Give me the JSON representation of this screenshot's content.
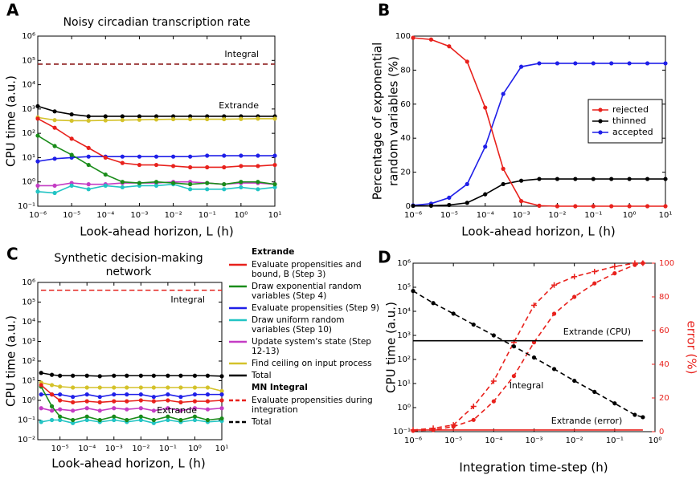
{
  "chart_data": [
    {
      "panel": "A",
      "type": "line",
      "title": "Noisy circadian transcription rate",
      "xlabel": "Look-ahead horizon, L (h)",
      "ylabel": "CPU time (a.u.)",
      "xscale": "log",
      "yscale": "log",
      "xlim": [
        1e-06,
        10
      ],
      "ylim": [
        0.1,
        1000000
      ],
      "xticks": [
        {
          "value": 1e-06,
          "label": "10⁻⁶"
        },
        {
          "value": 1e-05,
          "label": "10⁻⁵"
        },
        {
          "value": 0.0001,
          "label": "10⁻⁴"
        },
        {
          "value": 0.001,
          "label": "10⁻³"
        },
        {
          "value": 0.01,
          "label": "10⁻²"
        },
        {
          "value": 0.1,
          "label": "10⁻¹"
        },
        {
          "value": 1,
          "label": "10⁰"
        },
        {
          "value": 10,
          "label": "10¹"
        }
      ],
      "yticks": [
        {
          "value": 0.1,
          "label": "10⁻¹"
        },
        {
          "value": 1,
          "label": "10⁰"
        },
        {
          "value": 10,
          "label": "10¹"
        },
        {
          "value": 100,
          "label": "10²"
        },
        {
          "value": 1000,
          "label": "10³"
        },
        {
          "value": 10000,
          "label": "10⁴"
        },
        {
          "value": 100000,
          "label": "10⁵"
        },
        {
          "value": 1000000,
          "label": "10⁶"
        }
      ],
      "x": [
        1e-06,
        3.16e-06,
        1e-05,
        3.16e-05,
        0.0001,
        0.000316,
        0.001,
        0.00316,
        0.01,
        0.0316,
        0.1,
        0.316,
        1,
        3.16,
        10
      ],
      "series": [
        {
          "color": "#e8211c",
          "marker": "o",
          "values": [
            400,
            170,
            60,
            25,
            10,
            6,
            5,
            5,
            4.5,
            4,
            4,
            4,
            4.5,
            4.5,
            5
          ]
        },
        {
          "color": "#1a8c1a",
          "marker": "o",
          "values": [
            80,
            30,
            13,
            5,
            2,
            1,
            0.9,
            1,
            0.9,
            0.8,
            0.9,
            0.8,
            1,
            1,
            0.8
          ]
        },
        {
          "color": "#1f1fe8",
          "marker": "o",
          "values": [
            7,
            9,
            10,
            11,
            11,
            11,
            11,
            11,
            11,
            11,
            12,
            12,
            12,
            12,
            12
          ]
        },
        {
          "color": "#22c4c4",
          "marker": "o",
          "values": [
            0.4,
            0.35,
            0.7,
            0.5,
            0.7,
            0.6,
            0.7,
            0.7,
            0.8,
            0.5,
            0.5,
            0.5,
            0.6,
            0.5,
            0.6
          ]
        },
        {
          "color": "#c43cc4",
          "marker": "o",
          "values": [
            0.7,
            0.7,
            0.9,
            0.8,
            0.8,
            0.9,
            0.9,
            0.9,
            1,
            1,
            0.9,
            0.8,
            0.9,
            0.9,
            0.8
          ]
        },
        {
          "color": "#d4c22a",
          "marker": "o",
          "values": [
            450,
            350,
            330,
            330,
            340,
            350,
            360,
            370,
            380,
            380,
            380,
            380,
            390,
            400,
            400
          ]
        },
        {
          "color": "#000000",
          "marker": "o",
          "values": [
            1300,
            800,
            600,
            500,
            500,
            500,
            500,
            500,
            500,
            500,
            500,
            500,
            500,
            500,
            500
          ]
        },
        {
          "color": "#8b1a1a",
          "linestyle": "dashed",
          "values": [
            70000,
            70000,
            70000,
            70000,
            70000,
            70000,
            70000,
            70000,
            70000,
            70000,
            70000,
            70000,
            70000,
            70000,
            70000
          ]
        }
      ],
      "annotations": [
        "Integral",
        "Extrande"
      ]
    },
    {
      "panel": "B",
      "type": "line",
      "xlabel": "Look-ahead horizon, L (h)",
      "ylabel": [
        "Percentage of exponential",
        "random variables (%)"
      ],
      "xscale": "log",
      "xlim": [
        1e-06,
        10
      ],
      "ylim": [
        0,
        100
      ],
      "xticks": [
        {
          "value": 1e-06,
          "label": "10⁻⁶"
        },
        {
          "value": 1e-05,
          "label": "10⁻⁵"
        },
        {
          "value": 0.0001,
          "label": "10⁻⁴"
        },
        {
          "value": 0.001,
          "label": "10⁻³"
        },
        {
          "value": 0.01,
          "label": "10⁻²"
        },
        {
          "value": 0.1,
          "label": "10⁻¹"
        },
        {
          "value": 1,
          "label": "10⁰"
        },
        {
          "value": 10,
          "label": "10¹"
        }
      ],
      "yticks": [
        0,
        20,
        40,
        60,
        80,
        100
      ],
      "x": [
        1e-06,
        3.16e-06,
        1e-05,
        3.16e-05,
        0.0001,
        0.000316,
        0.001,
        0.00316,
        0.01,
        0.0316,
        0.1,
        0.316,
        1,
        3.16,
        10
      ],
      "series": [
        {
          "name": "rejected",
          "color": "#e8211c",
          "marker": "o",
          "values": [
            99,
            98,
            94,
            85,
            58,
            22,
            3,
            0.3,
            0,
            0,
            0,
            0,
            0,
            0,
            0
          ]
        },
        {
          "name": "thinned",
          "color": "#000000",
          "marker": "o",
          "values": [
            0.2,
            0.3,
            0.7,
            2,
            7,
            13,
            15,
            16,
            16,
            16,
            16,
            16,
            16,
            16,
            16
          ]
        },
        {
          "name": "accepted",
          "color": "#1f1fe8",
          "marker": "o",
          "values": [
            0.5,
            1.5,
            5,
            13,
            35,
            66,
            82,
            84,
            84,
            84,
            84,
            84,
            84,
            84,
            84
          ]
        }
      ],
      "legend": "center right"
    },
    {
      "panel": "C",
      "type": "line",
      "title": [
        "Synthetic decision-making",
        "network"
      ],
      "xlabel": "Look-ahead horizon, L (h)",
      "ylabel": "CPU time (a.u.)",
      "xscale": "log",
      "yscale": "log",
      "xlim": [
        1.5e-06,
        10
      ],
      "ylim": [
        0.01,
        1000000
      ],
      "xticks": [
        {
          "value": 1e-05,
          "label": "10⁻⁵"
        },
        {
          "value": 0.0001,
          "label": "10⁻⁴"
        },
        {
          "value": 0.001,
          "label": "10⁻³"
        },
        {
          "value": 0.01,
          "label": "10⁻²"
        },
        {
          "value": 0.1,
          "label": "10⁻¹"
        },
        {
          "value": 1,
          "label": "10⁰"
        },
        {
          "value": 10,
          "label": "10¹"
        }
      ],
      "yticks": [
        {
          "value": 0.01,
          "label": "10⁻²"
        },
        {
          "value": 0.1,
          "label": "10⁻¹"
        },
        {
          "value": 1,
          "label": "10⁰"
        },
        {
          "value": 10,
          "label": "10¹"
        },
        {
          "value": 100,
          "label": "10²"
        },
        {
          "value": 1000,
          "label": "10³"
        },
        {
          "value": 10000,
          "label": "10⁴"
        },
        {
          "value": 100000,
          "label": "10⁵"
        },
        {
          "value": 1000000,
          "label": "10⁶"
        }
      ],
      "x": [
        2e-06,
        5e-06,
        1e-05,
        3e-05,
        0.0001,
        0.0003,
        0.001,
        0.003,
        0.01,
        0.03,
        0.1,
        0.3,
        1,
        3,
        10
      ],
      "series_groups": [
        {
          "name": "Extrande",
          "series": [
            {
              "name": "Evaluate propensities and bound, B (Step 3)",
              "color": "#e8211c",
              "marker": "o",
              "values": [
                6,
                2,
                1,
                0.8,
                0.9,
                0.8,
                0.9,
                0.9,
                1,
                0.9,
                1,
                0.8,
                0.9,
                0.9,
                1
              ]
            },
            {
              "name": "Draw exponential random variables (Step 4)",
              "color": "#1a8c1a",
              "marker": "o",
              "values": [
                5,
                0.5,
                0.15,
                0.1,
                0.15,
                0.1,
                0.15,
                0.1,
                0.15,
                0.1,
                0.15,
                0.1,
                0.15,
                0.1,
                0.12
              ]
            },
            {
              "name": "Evaluate propensities (Step 9)",
              "color": "#1f1fe8",
              "marker": "o",
              "values": [
                2,
                2,
                2,
                1.5,
                2,
                1.5,
                2,
                2,
                2,
                1.5,
                2,
                1.5,
                2,
                2,
                2
              ]
            },
            {
              "name": "Draw uniform random variables (Step 10)",
              "color": "#22c4c4",
              "marker": "o",
              "values": [
                0.08,
                0.1,
                0.1,
                0.07,
                0.1,
                0.08,
                0.1,
                0.08,
                0.1,
                0.07,
                0.1,
                0.08,
                0.1,
                0.08,
                0.09
              ]
            },
            {
              "name": "Update system's state (Step 12-13)",
              "color": "#c43cc4",
              "marker": "o",
              "values": [
                0.4,
                0.3,
                0.35,
                0.3,
                0.4,
                0.3,
                0.4,
                0.35,
                0.4,
                0.3,
                0.4,
                0.3,
                0.4,
                0.35,
                0.4
              ]
            },
            {
              "name": "Find ceiling on input process",
              "color": "#d4c22a",
              "marker": "o",
              "values": [
                8,
                6,
                5,
                4.5,
                4.5,
                4.5,
                4.5,
                4.5,
                4.5,
                4.5,
                4.5,
                4.5,
                4.5,
                4.5,
                3
              ]
            },
            {
              "name": "Total",
              "color": "#000000",
              "marker": "o",
              "values": [
                25,
                20,
                18,
                18,
                18,
                17,
                18,
                18,
                18,
                18,
                18,
                18,
                18,
                18,
                17
              ]
            }
          ]
        },
        {
          "name": "MN Integral",
          "series": [
            {
              "name": "Evaluate propensities during integration",
              "color": "#e8211c",
              "linestyle": "dashed",
              "values": [
                400000,
                400000,
                400000,
                400000,
                400000,
                400000,
                400000,
                400000,
                400000,
                400000,
                400000,
                400000,
                400000,
                400000,
                400000
              ]
            },
            {
              "name": "Total",
              "color": "#000000",
              "linestyle": "dashed",
              "values": [
                400000,
                400000,
                400000,
                400000,
                400000,
                400000,
                400000,
                400000,
                400000,
                400000,
                400000,
                400000,
                400000,
                400000,
                400000
              ]
            }
          ]
        }
      ],
      "annotations": [
        "Integral",
        "Extrande"
      ]
    },
    {
      "panel": "D",
      "type": "line",
      "xlabel": "Integration time-step (h)",
      "ylabel": "CPU time (a.u.)",
      "y2label": "error (%)",
      "y2color": "#e8211c",
      "xscale": "log",
      "yscale": "log",
      "xlim": [
        1e-06,
        1
      ],
      "ylim": [
        0.1,
        1000000
      ],
      "y2lim": [
        0,
        100
      ],
      "xticks": [
        {
          "value": 1e-06,
          "label": "10⁻⁶"
        },
        {
          "value": 1e-05,
          "label": "10⁻⁵"
        },
        {
          "value": 0.0001,
          "label": "10⁻⁴"
        },
        {
          "value": 0.001,
          "label": "10⁻³"
        },
        {
          "value": 0.01,
          "label": "10⁻²"
        },
        {
          "value": 0.1,
          "label": "10⁻¹"
        },
        {
          "value": 1,
          "label": "10⁰"
        }
      ],
      "yticks": [
        {
          "value": 0.1,
          "label": "10⁻¹"
        },
        {
          "value": 1,
          "label": "10⁰"
        },
        {
          "value": 10,
          "label": "10¹"
        },
        {
          "value": 100,
          "label": "10²"
        },
        {
          "value": 1000,
          "label": "10³"
        },
        {
          "value": 10000,
          "label": "10⁴"
        },
        {
          "value": 100000,
          "label": "10⁵"
        },
        {
          "value": 1000000,
          "label": "10⁶"
        }
      ],
      "y2ticks": [
        0,
        20,
        40,
        60,
        80,
        100
      ],
      "x": [
        1e-06,
        3.16e-06,
        1e-05,
        3.16e-05,
        0.0001,
        0.000316,
        0.001,
        0.00316,
        0.01,
        0.0316,
        0.1,
        0.316,
        0.5
      ],
      "series": [
        {
          "color": "#000000",
          "marker": "o",
          "linestyle": "dashed",
          "values": [
            70000,
            22000,
            8000,
            2800,
            1000,
            350,
            120,
            40,
            13,
            4.5,
            1.5,
            0.5,
            0.4
          ]
        },
        {
          "color": "#000000",
          "values": [
            600,
            600,
            600,
            600,
            600,
            600,
            600,
            600,
            600,
            600,
            600,
            600,
            600
          ]
        },
        {
          "color": "#e8211c",
          "marker": "o",
          "linestyle": "dashed",
          "axis": "y2",
          "values": [
            0.5,
            1,
            3,
            7,
            18,
            33,
            53,
            70,
            80,
            88,
            94,
            99,
            100
          ]
        },
        {
          "color": "#e8211c",
          "marker": "+",
          "linestyle": "dashed",
          "axis": "y2",
          "values": [
            1,
            2,
            4,
            15,
            30,
            53,
            75,
            87,
            92,
            95,
            98,
            100,
            100
          ]
        },
        {
          "color": "#e8211c",
          "axis": "y2",
          "values": [
            1,
            1,
            1,
            1,
            1,
            1,
            1,
            1,
            1,
            1,
            1,
            1,
            1
          ]
        }
      ],
      "annotations": [
        "Extrande (CPU)",
        "Integral",
        "Extrande (error)"
      ]
    }
  ]
}
